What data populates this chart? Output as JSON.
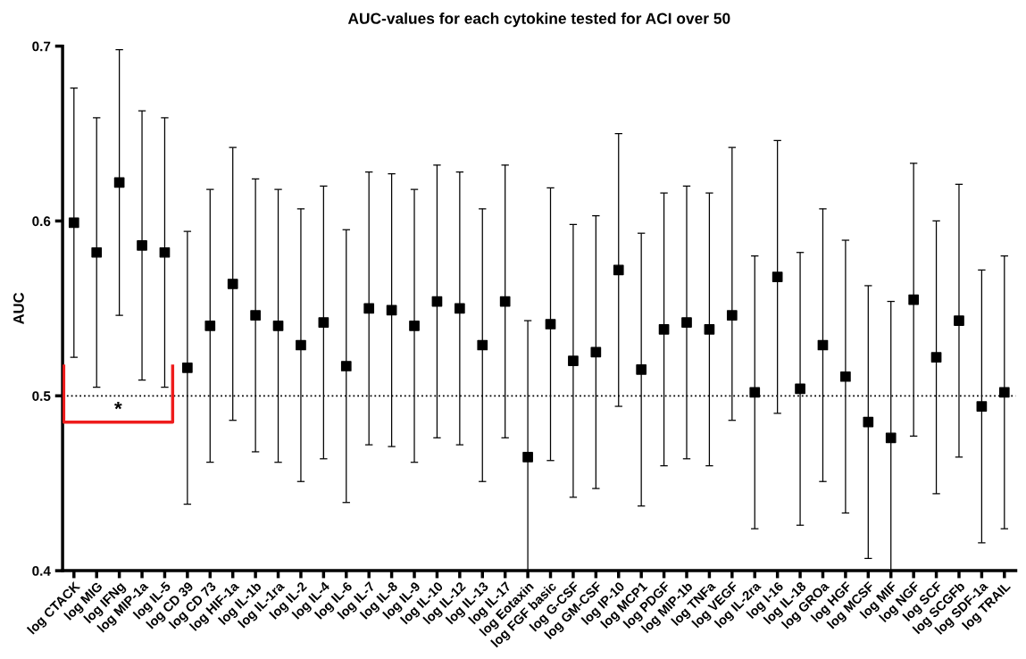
{
  "chart_data": {
    "type": "scatter",
    "title": "AUC-values for each cytokine tested for ACI over 50",
    "ylabel": "AUC",
    "categories": [
      "log CTACK",
      "log MIG",
      "log IFNg",
      "log MIP-1a",
      "log IL-5",
      "log CD 39",
      "log CD 73",
      "log HIF-1a",
      "log IL-1b",
      "log IL-1ra",
      "log IL-2",
      "log IL-4",
      "log IL-6",
      "log IL-7",
      "log IL-8",
      "log IL-9",
      "log IL-10",
      "log IL-12",
      "log IL-13",
      "log IL-17",
      "log Eotaxin",
      "log FGF basic",
      "log G-CSF",
      "log GM-CSF",
      "log IP-10",
      "log MCP1",
      "log PDGF",
      "log MIP-1b",
      "log TNFa",
      "log VEGF",
      "log IL-2ra",
      "log I-16",
      "log IL-18",
      "log GROa",
      "log HGF",
      "log MCSF",
      "log MIF",
      "log NGF",
      "log SCF",
      "log SCGFb",
      "log SDF-1a",
      "log TRAIL"
    ],
    "series": [
      {
        "color": "#000000",
        "values": [
          0.599,
          0.582,
          0.622,
          0.586,
          0.582,
          0.516,
          0.54,
          0.564,
          0.546,
          0.54,
          0.529,
          0.542,
          0.517,
          0.55,
          0.549,
          0.54,
          0.554,
          0.55,
          0.529,
          0.554,
          0.465,
          0.541,
          0.52,
          0.525,
          0.572,
          0.515,
          0.538,
          0.542,
          0.538,
          0.546,
          0.502,
          0.568,
          0.504,
          0.529,
          0.511,
          0.485,
          0.476,
          0.555,
          0.522,
          0.543,
          0.494,
          0.502
        ],
        "errors": [
          [
            0.522,
            0.676
          ],
          [
            0.505,
            0.659
          ],
          [
            0.546,
            0.698
          ],
          [
            0.509,
            0.663
          ],
          [
            0.505,
            0.659
          ],
          [
            0.438,
            0.594
          ],
          [
            0.462,
            0.618
          ],
          [
            0.486,
            0.642
          ],
          [
            0.468,
            0.624
          ],
          [
            0.462,
            0.618
          ],
          [
            0.451,
            0.607
          ],
          [
            0.464,
            0.62
          ],
          [
            0.439,
            0.595
          ],
          [
            0.472,
            0.628
          ],
          [
            0.471,
            0.627
          ],
          [
            0.462,
            0.618
          ],
          [
            0.476,
            0.632
          ],
          [
            0.472,
            0.628
          ],
          [
            0.451,
            0.607
          ],
          [
            0.476,
            0.632
          ],
          [
            0.4,
            0.543
          ],
          [
            0.463,
            0.619
          ],
          [
            0.442,
            0.598
          ],
          [
            0.447,
            0.603
          ],
          [
            0.494,
            0.65
          ],
          [
            0.437,
            0.593
          ],
          [
            0.46,
            0.616
          ],
          [
            0.464,
            0.62
          ],
          [
            0.46,
            0.616
          ],
          [
            0.486,
            0.642
          ],
          [
            0.424,
            0.58
          ],
          [
            0.49,
            0.646
          ],
          [
            0.426,
            0.582
          ],
          [
            0.451,
            0.607
          ],
          [
            0.433,
            0.589
          ],
          [
            0.407,
            0.563
          ],
          [
            0.4,
            0.554
          ],
          [
            0.477,
            0.633
          ],
          [
            0.444,
            0.6
          ],
          [
            0.465,
            0.621
          ],
          [
            0.416,
            0.572
          ],
          [
            0.424,
            0.58
          ]
        ]
      }
    ],
    "ylim": [
      0.4,
      0.7
    ],
    "yticks": [
      0.4,
      0.5,
      0.6,
      0.7
    ],
    "marker": "square",
    "grid": false,
    "legend": false,
    "ref_lines": [
      {
        "axis": "y",
        "value": 0.5,
        "line_style": "dotted",
        "color": "#000000"
      }
    ],
    "annotations": [
      "*"
    ]
  }
}
